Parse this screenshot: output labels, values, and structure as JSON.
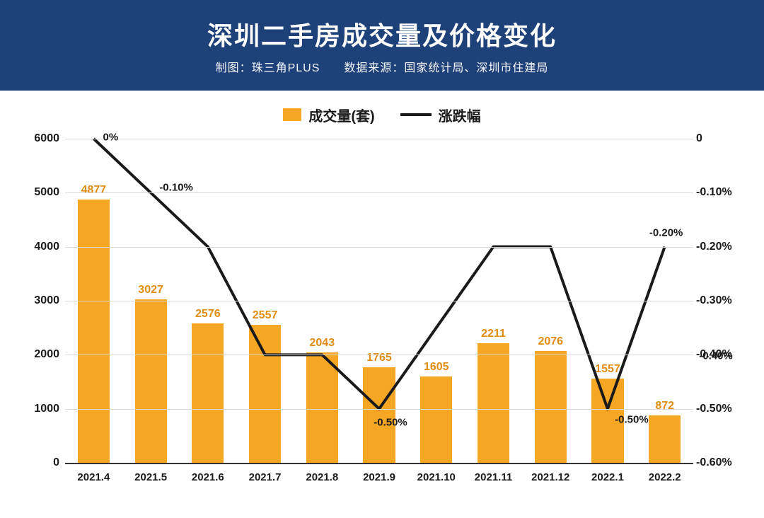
{
  "header": {
    "title": "深圳二手房成交量及价格变化",
    "subtitle": "制图：珠三角PLUS  数据来源：国家统计局、深圳市住建局",
    "bg_color": "#1f4179",
    "text_color": "#ffffff"
  },
  "legend": {
    "bar_label": "成交量(套)",
    "line_label": "涨跌幅",
    "bar_color": "#f5a623",
    "line_color": "#1a1a1a"
  },
  "chart": {
    "categories": [
      "2021.4",
      "2021.5",
      "2021.6",
      "2021.7",
      "2021.8",
      "2021.9",
      "2021.10",
      "2021.11",
      "2021.12",
      "2022.1",
      "2022.2"
    ],
    "bar_series": {
      "values": [
        4877,
        3027,
        2576,
        2557,
        2043,
        1765,
        1605,
        2211,
        2076,
        1557,
        872
      ],
      "color": "#f5a623",
      "value_color": "#e08c12",
      "value_fontsize": 16
    },
    "line_series": {
      "values": [
        0.0,
        -0.1,
        -0.2,
        -0.4,
        -0.4,
        -0.5,
        -0.35,
        -0.2,
        -0.2,
        -0.5,
        -0.2
      ],
      "display_labels": [
        "0%",
        "-0.10%",
        "",
        "",
        "",
        "-0.50%",
        "",
        "",
        "",
        "-0.50%",
        "-0.20%"
      ],
      "extra_label": {
        "text": "-0.40%",
        "after_index": 9,
        "value": -0.4
      },
      "color": "#1a1a1a",
      "stroke_width": 4
    },
    "left_axis": {
      "min": 0,
      "max": 6000,
      "step": 1000,
      "ticks": [
        "0",
        "1000",
        "2000",
        "3000",
        "4000",
        "5000",
        "6000"
      ],
      "fontsize": 16
    },
    "right_axis": {
      "min": -0.6,
      "max": 0.0,
      "step": 0.1,
      "ticks": [
        "0",
        "-0.10%",
        "-0.20%",
        "-0.30%",
        "-0.40%",
        "-0.50%",
        "-0.60%"
      ],
      "fontsize": 16
    },
    "grid_color": "#d9d9d9",
    "bar_width_ratio": 0.56
  }
}
